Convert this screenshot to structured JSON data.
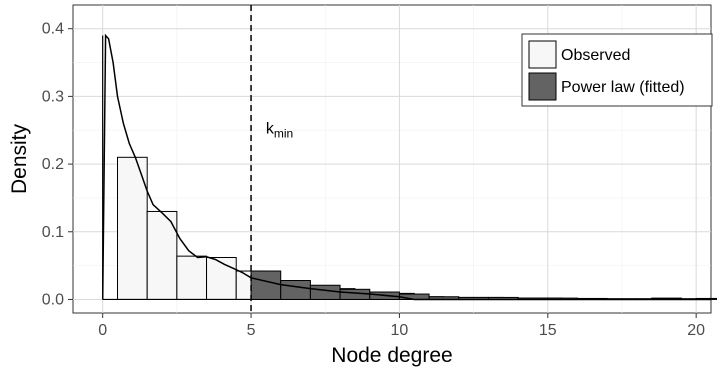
{
  "chart_data": {
    "type": "bar",
    "xlabel": "Node degree",
    "ylabel": "Density",
    "xlim": [
      -1,
      20.5
    ],
    "ylim": [
      -0.02,
      0.435
    ],
    "x_ticks": [
      0,
      5,
      10,
      15,
      20
    ],
    "y_ticks": [
      0.0,
      0.1,
      0.2,
      0.3,
      0.4
    ],
    "y_tick_labels": [
      "0.0",
      "0.1",
      "0.2",
      "0.3",
      "0.4"
    ],
    "bin_width": 1,
    "bin_starts": [
      0.5,
      1.5,
      2.5,
      3.5,
      4.5,
      5.5,
      6.5,
      7.5,
      8.5,
      9.5,
      10.5,
      11.5,
      12.5,
      13.5,
      14.5,
      15.5,
      16.5,
      17.5,
      18.5,
      19.5
    ],
    "series": [
      {
        "name": "Observed",
        "color": "#f7f7f7",
        "values": [
          0.21,
          0.13,
          0.064,
          0.062,
          0.042,
          0.028,
          0.02,
          0.016,
          0.011,
          0.009,
          0.004,
          0.003,
          0.003,
          0.002,
          0.002,
          0.001,
          0.001,
          0.001,
          0.002,
          0.001
        ]
      },
      {
        "name": "Power law (fitted)",
        "color": "#636363",
        "start_x": 5,
        "values": [
          0.042,
          0.028,
          0.021,
          0.015,
          0.011,
          0.008,
          0.004,
          0.003,
          0.003,
          0.002,
          0.002,
          0.0015,
          0.001,
          0.001,
          0.001,
          0.0015
        ]
      }
    ],
    "density_curve": {
      "x": [
        0.0,
        0.1,
        0.2,
        0.35,
        0.5,
        0.7,
        0.9,
        1.1,
        1.3,
        1.5,
        1.7,
        2.0,
        2.3,
        2.6,
        2.9,
        3.2,
        3.5,
        3.8,
        4.1,
        4.4,
        4.7,
        5.0,
        6.0,
        7.0,
        8.0,
        9.0,
        10.0,
        10.5
      ],
      "y": [
        0.0,
        0.39,
        0.385,
        0.35,
        0.3,
        0.26,
        0.23,
        0.21,
        0.185,
        0.16,
        0.14,
        0.128,
        0.115,
        0.09,
        0.072,
        0.062,
        0.063,
        0.059,
        0.052,
        0.046,
        0.04,
        0.032,
        0.022,
        0.016,
        0.011,
        0.008,
        0.004,
        0.0
      ]
    },
    "vline": {
      "x": 5,
      "style": "dashed"
    },
    "annotation": {
      "text": "k",
      "subscript": "min",
      "x": 5.5,
      "y": 0.245
    },
    "legend": {
      "position": "top-right"
    },
    "grid": true
  }
}
